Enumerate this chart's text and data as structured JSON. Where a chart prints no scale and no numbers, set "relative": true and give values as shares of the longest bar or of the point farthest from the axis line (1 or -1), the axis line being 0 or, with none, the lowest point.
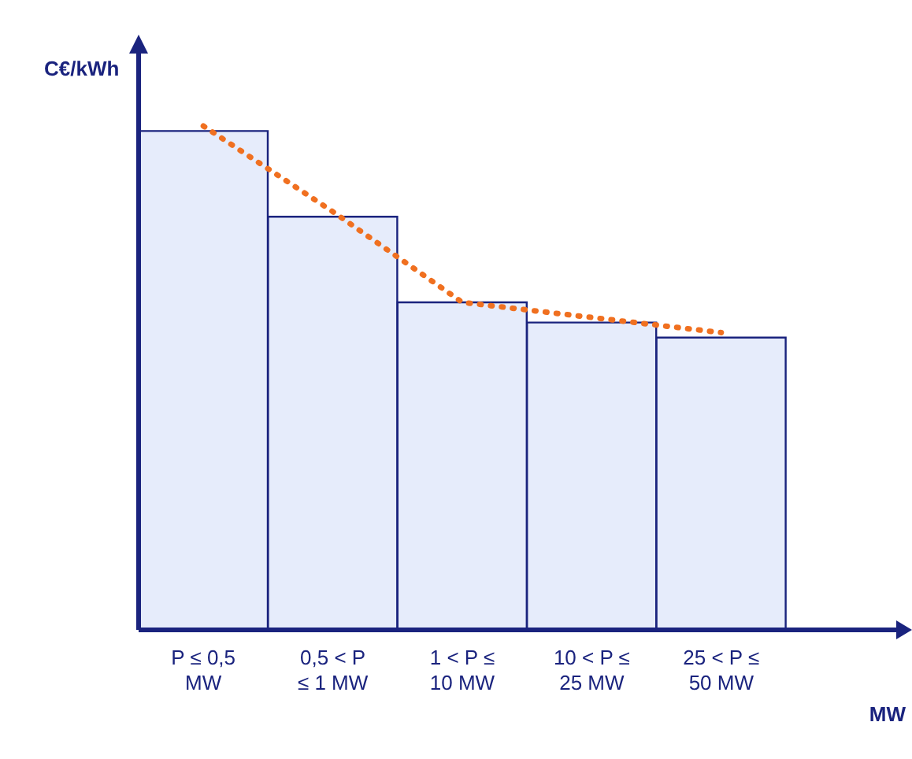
{
  "chart_data": {
    "type": "bar",
    "relative": true,
    "ylabel": "C€/kWh",
    "xlabel": "MW",
    "categories": [
      "P ≤ 0,5 MW",
      "0,5 < P ≤ 1 MW",
      "1 < P ≤ 10 MW",
      "10 < P ≤ 25 MW",
      "25 < P ≤ 50 MW"
    ],
    "series": [
      {
        "color": "#e6ecfb",
        "values": [
          0.99,
          0.82,
          0.65,
          0.61,
          0.58
        ]
      },
      {
        "type": "line",
        "color": "#f07020",
        "line_style": "dotted",
        "marker": "none",
        "values": [
          1,
          0.83,
          0.65,
          0.62,
          0.59
        ]
      }
    ]
  }
}
